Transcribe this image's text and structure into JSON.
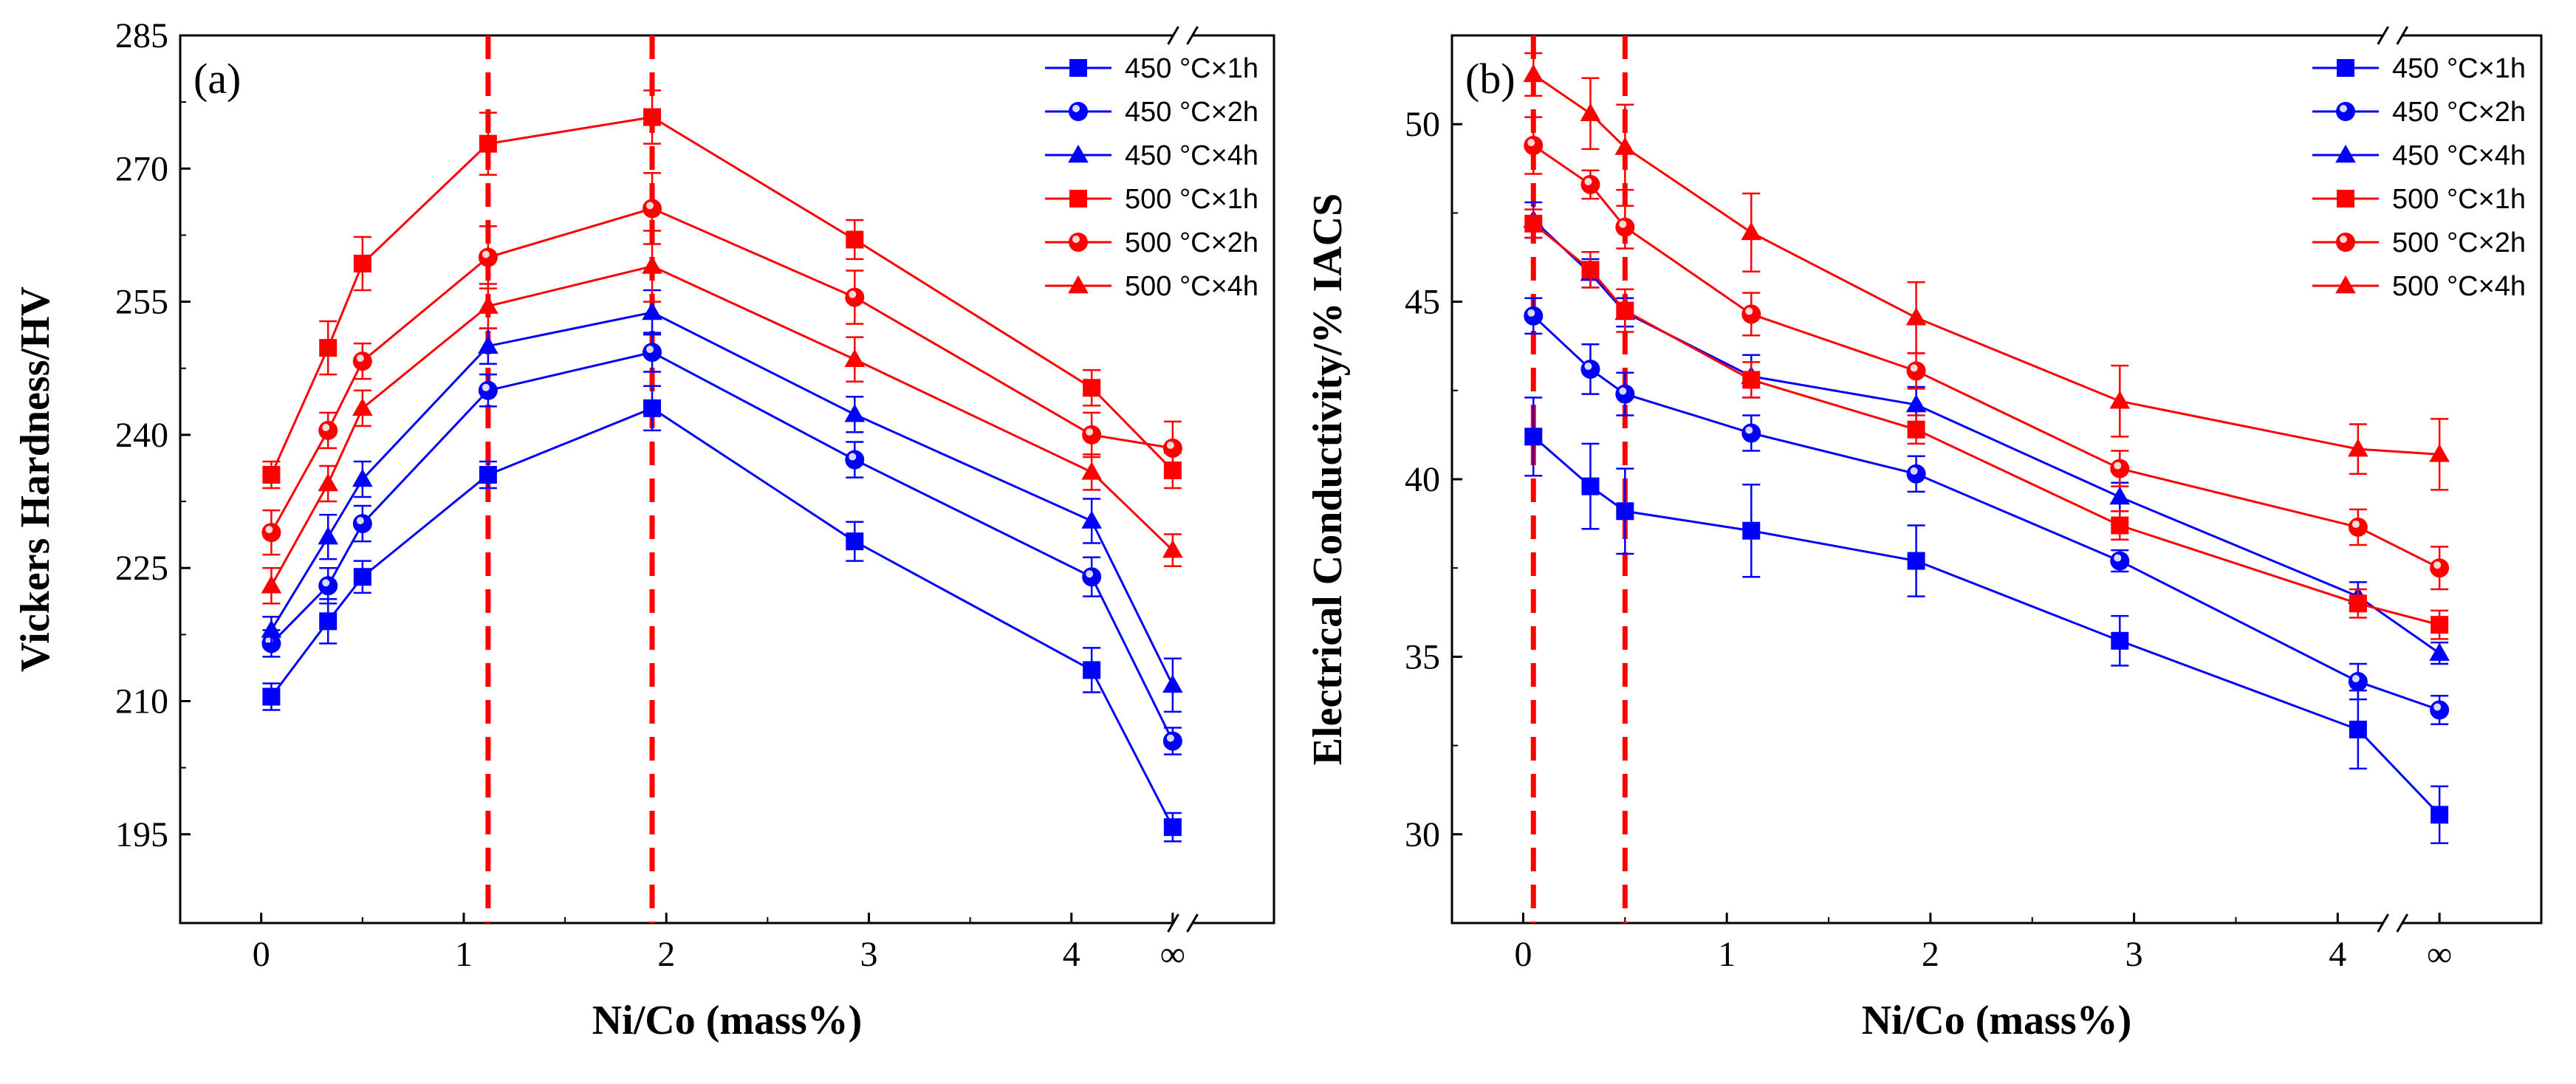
{
  "chart_data": [
    {
      "panel_label": "(a)",
      "type": "line",
      "xlabel": "Ni/Co (mass%)",
      "ylabel": "Vickers Hardness/HV",
      "ylim": [
        185,
        285
      ],
      "yticks": [
        195,
        210,
        225,
        240,
        255,
        270,
        285
      ],
      "xticks": [
        "0",
        "1",
        "2",
        "3",
        "4",
        "∞"
      ],
      "x_axis_break": "between 4 and ∞",
      "x": [
        0.05,
        0.33,
        0.5,
        1.12,
        1.93,
        2.93,
        4.1,
        "∞"
      ],
      "vlines_x": [
        1.12,
        1.93
      ],
      "legend_position": "top-right",
      "grid": false,
      "series": [
        {
          "name": "450 °C×1h",
          "color": "#0000ff",
          "marker": "square",
          "values": [
            210.5,
            219,
            224,
            235.5,
            243,
            228,
            213.5,
            195.8
          ],
          "errors": [
            1.5,
            2.5,
            1.8,
            1.5,
            2.5,
            2.2,
            2.5,
            1.6
          ]
        },
        {
          "name": "450 °C×2h",
          "color": "#0000ff",
          "marker": "circle",
          "values": [
            216.5,
            223,
            230,
            245,
            249.3,
            237.2,
            224,
            205.5
          ],
          "errors": [
            1.5,
            2.0,
            2.0,
            1.8,
            2.2,
            2.0,
            2.2,
            1.5
          ]
        },
        {
          "name": "450 °C×4h",
          "color": "#0000ff",
          "marker": "triangle",
          "values": [
            218,
            228.5,
            235,
            250,
            253.8,
            242.3,
            230.3,
            211.8
          ],
          "errors": [
            1.5,
            2.5,
            2.0,
            2.0,
            2.5,
            2.0,
            2.5,
            3.0
          ]
        },
        {
          "name": "500 °C×1h",
          "color": "#ff0000",
          "marker": "square",
          "values": [
            235.5,
            249.8,
            259.3,
            272.8,
            275.8,
            262,
            245.3,
            236
          ],
          "errors": [
            1.5,
            3.0,
            3.0,
            3.5,
            3.0,
            2.2,
            2.0,
            2.0
          ]
        },
        {
          "name": "500 °C×2h",
          "color": "#ff0000",
          "marker": "circle",
          "values": [
            229,
            240.5,
            248.3,
            260,
            265.5,
            255.5,
            240,
            238.5
          ],
          "errors": [
            2.5,
            2.0,
            2.0,
            3.5,
            4.0,
            3.0,
            2.5,
            3.0
          ]
        },
        {
          "name": "500 °C×4h",
          "color": "#ff0000",
          "marker": "triangle",
          "values": [
            223,
            234.5,
            243,
            254.5,
            259,
            248.5,
            235.8,
            227
          ],
          "errors": [
            2.0,
            2.0,
            2.0,
            2.5,
            4.0,
            2.5,
            2.0,
            1.8
          ]
        }
      ]
    },
    {
      "panel_label": "(b)",
      "type": "line",
      "xlabel": "Ni/Co (mass%)",
      "ylabel": "Electrical Conductivity/% IACS",
      "ylim": [
        27.5,
        52.5
      ],
      "yticks": [
        30,
        35,
        40,
        45,
        50
      ],
      "xticks": [
        "0",
        "1",
        "2",
        "3",
        "4",
        "∞"
      ],
      "x_axis_break": "between 4 and ∞",
      "x": [
        0.05,
        0.33,
        0.5,
        1.12,
        1.93,
        2.93,
        4.1,
        "∞"
      ],
      "vlines_x": [
        0.05,
        0.5
      ],
      "legend_position": "top-right",
      "grid": false,
      "series": [
        {
          "name": "450 °C×1h",
          "color": "#0000ff",
          "marker": "square",
          "values": [
            41.2,
            39.8,
            39.1,
            38.55,
            37.7,
            35.45,
            32.95,
            30.55
          ],
          "errors": [
            1.1,
            1.2,
            1.2,
            1.3,
            1.0,
            0.7,
            1.1,
            0.8
          ]
        },
        {
          "name": "450 °C×2h",
          "color": "#0000ff",
          "marker": "circle",
          "values": [
            44.6,
            43.1,
            42.4,
            41.3,
            40.15,
            37.7,
            34.3,
            33.5
          ],
          "errors": [
            0.5,
            0.7,
            0.6,
            0.5,
            0.5,
            0.3,
            0.5,
            0.4
          ]
        },
        {
          "name": "450 °C×4h",
          "color": "#0000ff",
          "marker": "triangle",
          "values": [
            47.3,
            45.8,
            44.7,
            42.9,
            42.1,
            39.5,
            36.7,
            35.1
          ],
          "errors": [
            0.5,
            0.4,
            0.4,
            0.6,
            0.5,
            0.4,
            0.4,
            0.3
          ]
        },
        {
          "name": "500 °C×1h",
          "color": "#ff0000",
          "marker": "square",
          "values": [
            47.2,
            45.9,
            44.75,
            42.8,
            41.4,
            38.7,
            36.5,
            35.9
          ],
          "errors": [
            0.4,
            0.5,
            0.6,
            0.5,
            0.4,
            0.4,
            0.4,
            0.4
          ]
        },
        {
          "name": "500 °C×2h",
          "color": "#ff0000",
          "marker": "circle",
          "values": [
            49.4,
            48.3,
            47.1,
            44.65,
            43.05,
            40.3,
            38.65,
            37.5
          ],
          "errors": [
            0.8,
            0.4,
            0.6,
            0.6,
            0.5,
            0.5,
            0.5,
            0.6
          ]
        },
        {
          "name": "500 °C×4h",
          "color": "#ff0000",
          "marker": "triangle",
          "values": [
            51.4,
            50.3,
            49.35,
            46.95,
            44.55,
            42.2,
            40.85,
            40.7
          ],
          "errors": [
            0.6,
            1.0,
            1.2,
            1.1,
            1.0,
            1.0,
            0.7,
            1.0
          ]
        }
      ]
    }
  ]
}
